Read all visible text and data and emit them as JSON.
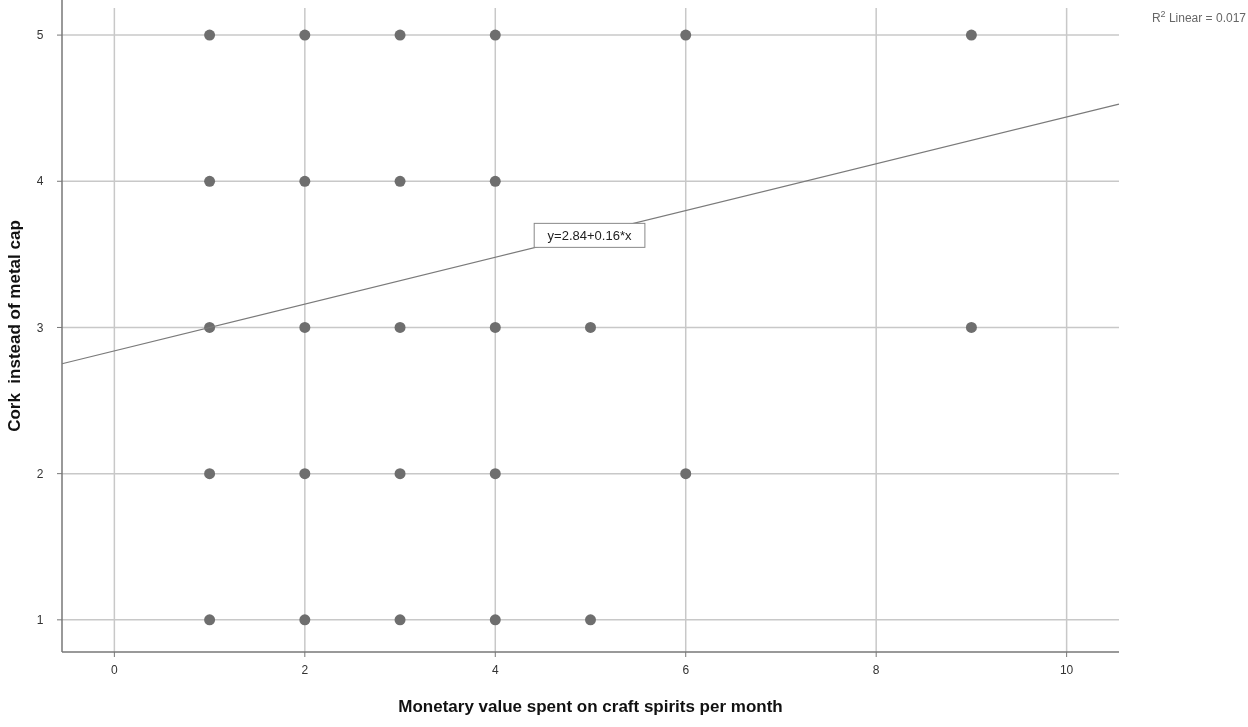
{
  "chart_data": {
    "type": "scatter",
    "xlabel": "Monetary value spent on craft spirits per month",
    "ylabel": "Cork  instead of metal cap",
    "xlim": [
      -0.55,
      10.55
    ],
    "xticks": [
      0,
      2,
      4,
      6,
      8,
      10
    ],
    "ylim": [
      0.78,
      5.24
    ],
    "yticks": [
      1,
      2,
      3,
      4,
      5
    ],
    "grid": true,
    "marker": "circle",
    "series": [
      {
        "color": "#6e6e6e",
        "x": [
          1,
          2,
          3,
          4,
          6,
          9,
          1,
          2,
          3,
          4,
          1,
          2,
          3,
          4,
          5,
          9,
          1,
          2,
          3,
          4,
          6,
          1,
          2,
          3,
          4,
          5
        ],
        "values": [
          5,
          5,
          5,
          5,
          5,
          5,
          4,
          4,
          4,
          4,
          3,
          3,
          3,
          3,
          3,
          3,
          2,
          2,
          2,
          2,
          2,
          1,
          1,
          1,
          1,
          1
        ]
      },
      {
        "type": "line",
        "marker": "none",
        "color": "#7a7a7a",
        "x": [
          -0.55,
          10.55
        ],
        "values": [
          2.752,
          4.528
        ]
      }
    ],
    "annotations": [
      {
        "text": "y=2.84+0.16*x",
        "x": 4.99,
        "y": 3.63
      },
      "R$^{2}$ Linear = 0.017"
    ]
  }
}
